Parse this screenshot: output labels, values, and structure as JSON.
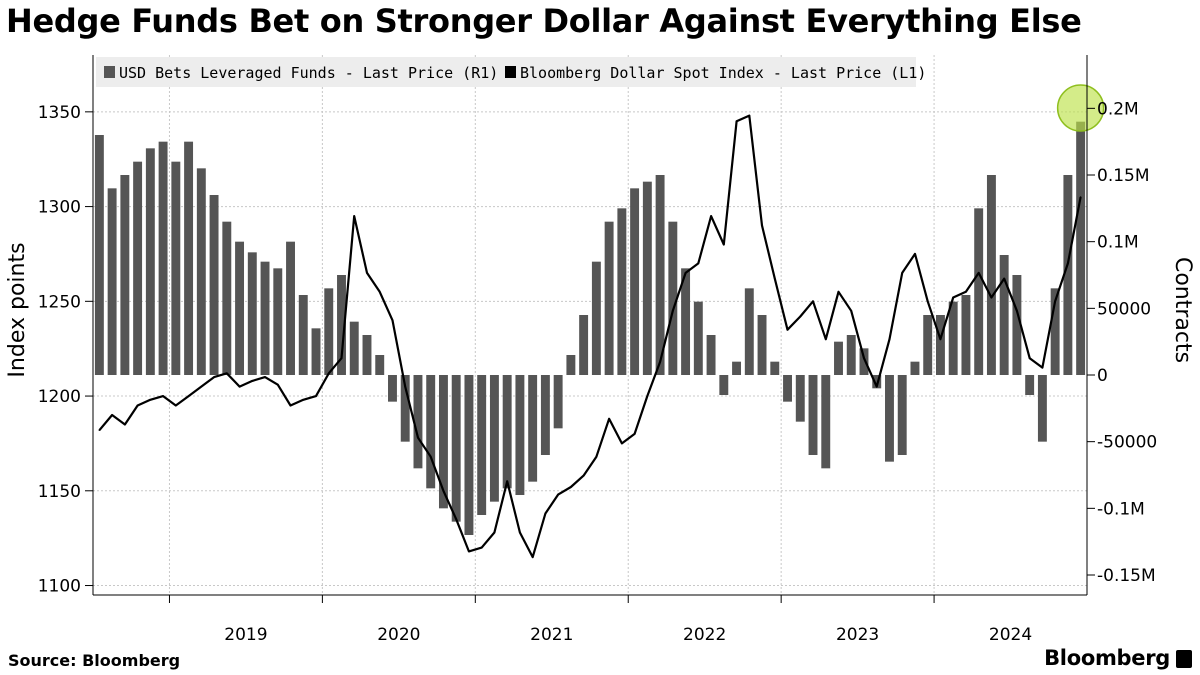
{
  "title": "Hedge Funds Bet on Stronger Dollar Against Everything Else",
  "footer": {
    "source": "Source: Bloomberg",
    "brand": "Bloomberg"
  },
  "colors": {
    "bars": "#555555",
    "line": "#000000",
    "highlight": "#bde24a",
    "legend_bg": "#ededed",
    "grid": "#c8c8c8"
  },
  "chart_data": {
    "type": "bar+line",
    "legend_placement": "top-left",
    "grid": true,
    "x_labels": [
      "2019",
      "2020",
      "2021",
      "2022",
      "2023",
      "2024"
    ],
    "x_range": [
      "2018-07",
      "2024-12"
    ],
    "y_left": {
      "label": "Index points",
      "range": [
        1095,
        1380
      ],
      "ticks": [
        1100,
        1150,
        1200,
        1250,
        1300,
        1350
      ],
      "tick_labels": [
        "1100",
        "1150",
        "1200",
        "1250",
        "1300",
        "1350"
      ]
    },
    "y_right": {
      "label": "Contracts",
      "range": [
        -165000,
        240000
      ],
      "ticks": [
        -150000,
        -100000,
        -50000,
        0,
        50000,
        100000,
        150000,
        200000
      ],
      "tick_labels": [
        "-0.15M",
        "-0.1M",
        "-50000",
        "0",
        "50000",
        "0.1M",
        "0.15M",
        "0.2M"
      ]
    },
    "series": [
      {
        "name": "USD Bets Leveraged Funds - Last Price (R1)",
        "kind": "bar",
        "axis": "right",
        "points": [
          [
            "2018-07",
            180000
          ],
          [
            "2018-08",
            140000
          ],
          [
            "2018-09",
            150000
          ],
          [
            "2018-10",
            160000
          ],
          [
            "2018-11",
            170000
          ],
          [
            "2018-12",
            175000
          ],
          [
            "2019-01",
            160000
          ],
          [
            "2019-02",
            175000
          ],
          [
            "2019-03",
            155000
          ],
          [
            "2019-04",
            135000
          ],
          [
            "2019-05",
            115000
          ],
          [
            "2019-06",
            100000
          ],
          [
            "2019-07",
            92000
          ],
          [
            "2019-08",
            85000
          ],
          [
            "2019-09",
            80000
          ],
          [
            "2019-10",
            100000
          ],
          [
            "2019-11",
            60000
          ],
          [
            "2019-12",
            35000
          ],
          [
            "2020-01",
            65000
          ],
          [
            "2020-02",
            75000
          ],
          [
            "2020-03",
            40000
          ],
          [
            "2020-04",
            30000
          ],
          [
            "2020-05",
            15000
          ],
          [
            "2020-06",
            -20000
          ],
          [
            "2020-07",
            -50000
          ],
          [
            "2020-08",
            -70000
          ],
          [
            "2020-09",
            -85000
          ],
          [
            "2020-10",
            -100000
          ],
          [
            "2020-11",
            -110000
          ],
          [
            "2020-12",
            -120000
          ],
          [
            "2021-01",
            -105000
          ],
          [
            "2021-02",
            -95000
          ],
          [
            "2021-03",
            -85000
          ],
          [
            "2021-04",
            -90000
          ],
          [
            "2021-05",
            -80000
          ],
          [
            "2021-06",
            -60000
          ],
          [
            "2021-07",
            -40000
          ],
          [
            "2021-08",
            15000
          ],
          [
            "2021-09",
            45000
          ],
          [
            "2021-10",
            85000
          ],
          [
            "2021-11",
            115000
          ],
          [
            "2021-12",
            125000
          ],
          [
            "2022-01",
            140000
          ],
          [
            "2022-02",
            145000
          ],
          [
            "2022-03",
            150000
          ],
          [
            "2022-04",
            115000
          ],
          [
            "2022-05",
            80000
          ],
          [
            "2022-06",
            55000
          ],
          [
            "2022-07",
            30000
          ],
          [
            "2022-08",
            -15000
          ],
          [
            "2022-09",
            10000
          ],
          [
            "2022-10",
            65000
          ],
          [
            "2022-11",
            45000
          ],
          [
            "2022-12",
            10000
          ],
          [
            "2023-01",
            -20000
          ],
          [
            "2023-02",
            -35000
          ],
          [
            "2023-03",
            -60000
          ],
          [
            "2023-04",
            -70000
          ],
          [
            "2023-05",
            25000
          ],
          [
            "2023-06",
            30000
          ],
          [
            "2023-07",
            20000
          ],
          [
            "2023-08",
            -10000
          ],
          [
            "2023-09",
            -65000
          ],
          [
            "2023-10",
            -60000
          ],
          [
            "2023-11",
            10000
          ],
          [
            "2023-12",
            45000
          ],
          [
            "2024-01",
            45000
          ],
          [
            "2024-02",
            55000
          ],
          [
            "2024-03",
            60000
          ],
          [
            "2024-04",
            125000
          ],
          [
            "2024-05",
            150000
          ],
          [
            "2024-06",
            90000
          ],
          [
            "2024-07",
            75000
          ],
          [
            "2024-08",
            -15000
          ],
          [
            "2024-09",
            -50000
          ],
          [
            "2024-10",
            65000
          ],
          [
            "2024-11",
            150000
          ],
          [
            "2024-12",
            190000
          ]
        ]
      },
      {
        "name": "Bloomberg Dollar Spot Index - Last Price (L1)",
        "kind": "line",
        "axis": "left",
        "points": [
          [
            "2018-07",
            1182
          ],
          [
            "2018-08",
            1190
          ],
          [
            "2018-09",
            1185
          ],
          [
            "2018-10",
            1195
          ],
          [
            "2018-11",
            1198
          ],
          [
            "2018-12",
            1200
          ],
          [
            "2019-01",
            1195
          ],
          [
            "2019-02",
            1200
          ],
          [
            "2019-03",
            1205
          ],
          [
            "2019-04",
            1210
          ],
          [
            "2019-05",
            1212
          ],
          [
            "2019-06",
            1205
          ],
          [
            "2019-07",
            1208
          ],
          [
            "2019-08",
            1210
          ],
          [
            "2019-09",
            1206
          ],
          [
            "2019-10",
            1195
          ],
          [
            "2019-11",
            1198
          ],
          [
            "2019-12",
            1200
          ],
          [
            "2020-01",
            1212
          ],
          [
            "2020-02",
            1220
          ],
          [
            "2020-03",
            1295
          ],
          [
            "2020-04",
            1265
          ],
          [
            "2020-05",
            1255
          ],
          [
            "2020-06",
            1240
          ],
          [
            "2020-07",
            1205
          ],
          [
            "2020-08",
            1178
          ],
          [
            "2020-09",
            1168
          ],
          [
            "2020-10",
            1150
          ],
          [
            "2020-11",
            1135
          ],
          [
            "2020-12",
            1118
          ],
          [
            "2021-01",
            1120
          ],
          [
            "2021-02",
            1128
          ],
          [
            "2021-03",
            1155
          ],
          [
            "2021-04",
            1128
          ],
          [
            "2021-05",
            1115
          ],
          [
            "2021-06",
            1138
          ],
          [
            "2021-07",
            1148
          ],
          [
            "2021-08",
            1152
          ],
          [
            "2021-09",
            1158
          ],
          [
            "2021-10",
            1168
          ],
          [
            "2021-11",
            1188
          ],
          [
            "2021-12",
            1175
          ],
          [
            "2022-01",
            1180
          ],
          [
            "2022-02",
            1200
          ],
          [
            "2022-03",
            1218
          ],
          [
            "2022-04",
            1245
          ],
          [
            "2022-05",
            1265
          ],
          [
            "2022-06",
            1270
          ],
          [
            "2022-07",
            1295
          ],
          [
            "2022-08",
            1280
          ],
          [
            "2022-09",
            1345
          ],
          [
            "2022-10",
            1348
          ],
          [
            "2022-11",
            1290
          ],
          [
            "2022-12",
            1262
          ],
          [
            "2023-01",
            1235
          ],
          [
            "2023-02",
            1242
          ],
          [
            "2023-03",
            1250
          ],
          [
            "2023-04",
            1230
          ],
          [
            "2023-05",
            1255
          ],
          [
            "2023-06",
            1245
          ],
          [
            "2023-07",
            1220
          ],
          [
            "2023-08",
            1205
          ],
          [
            "2023-09",
            1230
          ],
          [
            "2023-10",
            1265
          ],
          [
            "2023-11",
            1275
          ],
          [
            "2023-12",
            1250
          ],
          [
            "2024-01",
            1230
          ],
          [
            "2024-02",
            1252
          ],
          [
            "2024-03",
            1255
          ],
          [
            "2024-04",
            1265
          ],
          [
            "2024-05",
            1252
          ],
          [
            "2024-06",
            1262
          ],
          [
            "2024-07",
            1245
          ],
          [
            "2024-08",
            1220
          ],
          [
            "2024-09",
            1215
          ],
          [
            "2024-10",
            1250
          ],
          [
            "2024-11",
            1270
          ],
          [
            "2024-12",
            1305
          ]
        ]
      }
    ],
    "annotations": [
      {
        "kind": "circle-highlight",
        "at": [
          "2024-12",
          1352
        ]
      }
    ]
  }
}
